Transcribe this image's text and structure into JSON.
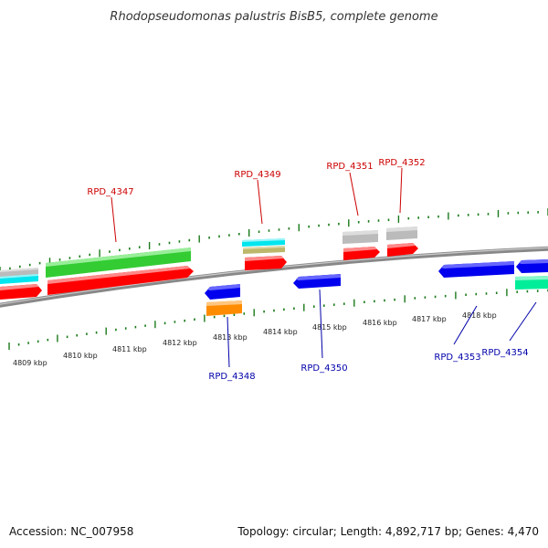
{
  "title": "Rhodopseudomonas palustris BisB5, complete genome",
  "footer": {
    "accession": "Accession: NC_007958",
    "summary": "Topology: circular; Length: 4,892,717 bp; Genes: 4,470"
  },
  "colors": {
    "forward_label": "#cc0000",
    "reverse_label": "#0000aa",
    "tick": "#1a7a1a",
    "backbone": "#888888"
  },
  "tick_labels": [
    "4809 kbp",
    "4810 kbp",
    "4811 kbp",
    "4812 kbp",
    "4813 kbp",
    "4814 kbp",
    "4815 kbp",
    "4816 kbp",
    "4817 kbp",
    "4818 kbp"
  ],
  "genes": [
    {
      "id": "RPD_4347",
      "strand": "+"
    },
    {
      "id": "RPD_4348",
      "strand": "-"
    },
    {
      "id": "RPD_4349",
      "strand": "+"
    },
    {
      "id": "RPD_4350",
      "strand": "-"
    },
    {
      "id": "RPD_4351",
      "strand": "+"
    },
    {
      "id": "RPD_4352",
      "strand": "+"
    },
    {
      "id": "RPD_4353",
      "strand": "-"
    },
    {
      "id": "RPD_4354",
      "strand": "-"
    }
  ]
}
